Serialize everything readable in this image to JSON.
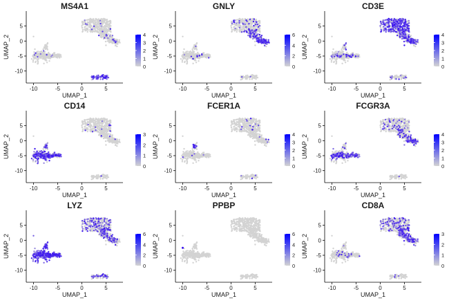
{
  "colors": {
    "low": "#d3d3d3",
    "high": "#0000ff",
    "axis": "#000000",
    "text": "#1a1a1a"
  },
  "chart_data": [
    {
      "type": "scatter",
      "title": "MS4A1",
      "xlabel": "UMAP_1",
      "ylabel": "UMAP_2",
      "xlim": [
        -11.5,
        8.5
      ],
      "ylim": [
        -14,
        10
      ],
      "x_ticks": [
        -10,
        -5,
        0,
        5
      ],
      "y_ticks": [
        -10,
        -5,
        0,
        5
      ],
      "legend": {
        "ticks": [
          0,
          1,
          2,
          3,
          4
        ],
        "max": 4
      },
      "grid": false,
      "legend_position": "right",
      "expression": {
        "top": 0.05,
        "top_right": 0.05,
        "left": 0.03,
        "bottom": 0.85,
        "far_right": 0.03,
        "left_hot": 0.0
      }
    },
    {
      "type": "scatter",
      "title": "GNLY",
      "xlabel": "UMAP_1",
      "ylabel": "UMAP_2",
      "xlim": [
        -11.5,
        8.5
      ],
      "ylim": [
        -14,
        10
      ],
      "x_ticks": [
        -10,
        -5,
        0,
        5
      ],
      "y_ticks": [
        -10,
        -5,
        0,
        5
      ],
      "legend": {
        "ticks": [
          0,
          2,
          4,
          6
        ],
        "max": 6
      },
      "grid": false,
      "legend_position": "right",
      "expression": {
        "top": 0.12,
        "top_right": 0.45,
        "left": 0.03,
        "bottom": 0.05,
        "far_right": 0.9,
        "left_hot": 0.0
      }
    },
    {
      "type": "scatter",
      "title": "CD3E",
      "xlabel": "UMAP_1",
      "ylabel": "UMAP_2",
      "xlim": [
        -11.5,
        8.5
      ],
      "ylim": [
        -14,
        10
      ],
      "x_ticks": [
        -10,
        -5,
        0,
        5
      ],
      "y_ticks": [
        -10,
        -5,
        0,
        5
      ],
      "legend": {
        "ticks": [
          0,
          1,
          2,
          3,
          4
        ],
        "max": 4
      },
      "grid": false,
      "legend_position": "right",
      "expression": {
        "top": 0.75,
        "top_right": 0.55,
        "left": 0.15,
        "bottom": 0.1,
        "far_right": 0.3,
        "left_hot": 0.0
      }
    },
    {
      "type": "scatter",
      "title": "CD14",
      "xlabel": "UMAP_1",
      "ylabel": "UMAP_2",
      "xlim": [
        -11.5,
        8.5
      ],
      "ylim": [
        -14,
        10
      ],
      "x_ticks": [
        -10,
        -5,
        0,
        5
      ],
      "y_ticks": [
        -10,
        -5,
        0,
        5
      ],
      "legend": {
        "ticks": [
          0,
          1,
          2,
          3
        ],
        "max": 3
      },
      "grid": false,
      "legend_position": "right",
      "expression": {
        "top": 0.02,
        "top_right": 0.02,
        "left": 0.55,
        "bottom": 0.02,
        "far_right": 0.02,
        "left_hot": 0.85
      }
    },
    {
      "type": "scatter",
      "title": "FCER1A",
      "xlabel": "UMAP_1",
      "ylabel": "UMAP_2",
      "xlim": [
        -11.5,
        8.5
      ],
      "ylim": [
        -14,
        10
      ],
      "x_ticks": [
        -10,
        -5,
        0,
        5
      ],
      "y_ticks": [
        -10,
        -5,
        0,
        5
      ],
      "legend": {
        "ticks": [
          0,
          1,
          2,
          3,
          4
        ],
        "max": 4
      },
      "grid": false,
      "legend_position": "right",
      "expression": {
        "top": 0.03,
        "top_right": 0.02,
        "left": 0.03,
        "bottom": 0.02,
        "far_right": 0.02,
        "left_hot": 0.0
      }
    },
    {
      "type": "scatter",
      "title": "FCGR3A",
      "xlabel": "UMAP_1",
      "ylabel": "UMAP_2",
      "xlim": [
        -11.5,
        8.5
      ],
      "ylim": [
        -14,
        10
      ],
      "x_ticks": [
        -10,
        -5,
        0,
        5
      ],
      "y_ticks": [
        -10,
        -5,
        0,
        5
      ],
      "legend": {
        "ticks": [
          0,
          1,
          2,
          3,
          4
        ],
        "max": 4
      },
      "grid": false,
      "legend_position": "right",
      "expression": {
        "top": 0.1,
        "top_right": 0.35,
        "left": 0.5,
        "bottom": 0.03,
        "far_right": 0.8,
        "left_hot": 0.2
      }
    },
    {
      "type": "scatter",
      "title": "LYZ",
      "xlabel": "UMAP_1",
      "ylabel": "UMAP_2",
      "xlim": [
        -11.5,
        8.5
      ],
      "ylim": [
        -14,
        10
      ],
      "x_ticks": [
        -10,
        -5,
        0,
        5
      ],
      "y_ticks": [
        -10,
        -5,
        0,
        5
      ],
      "legend": {
        "ticks": [
          0,
          2,
          4,
          6
        ],
        "max": 6
      },
      "grid": false,
      "legend_position": "right",
      "expression": {
        "top": 0.35,
        "top_right": 0.35,
        "left": 0.9,
        "bottom": 0.3,
        "far_right": 0.3,
        "left_hot": 0.95
      }
    },
    {
      "type": "scatter",
      "title": "PPBP",
      "xlabel": "UMAP_1",
      "ylabel": "UMAP_2",
      "xlim": [
        -11.5,
        8.5
      ],
      "ylim": [
        -14,
        10
      ],
      "x_ticks": [
        -10,
        -5,
        0,
        5
      ],
      "y_ticks": [
        -10,
        -5,
        0,
        5
      ],
      "legend": {
        "ticks": [
          0,
          2,
          4,
          6
        ],
        "max": 6
      },
      "grid": false,
      "legend_position": "right",
      "expression": {
        "top": 0.0,
        "top_right": 0.0,
        "left": 0.0,
        "bottom": 0.0,
        "far_right": 0.0,
        "left_hot": 0.0
      }
    },
    {
      "type": "scatter",
      "title": "CD8A",
      "xlabel": "UMAP_1",
      "ylabel": "UMAP_2",
      "xlim": [
        -11.5,
        8.5
      ],
      "ylim": [
        -14,
        10
      ],
      "x_ticks": [
        -10,
        -5,
        0,
        5
      ],
      "y_ticks": [
        -10,
        -5,
        0,
        5
      ],
      "legend": {
        "ticks": [
          0,
          1,
          2,
          3
        ],
        "max": 3
      },
      "grid": false,
      "legend_position": "right",
      "expression": {
        "top": 0.25,
        "top_right": 0.55,
        "left": 0.05,
        "bottom": 0.05,
        "far_right": 0.25,
        "left_hot": 0.0
      }
    }
  ]
}
